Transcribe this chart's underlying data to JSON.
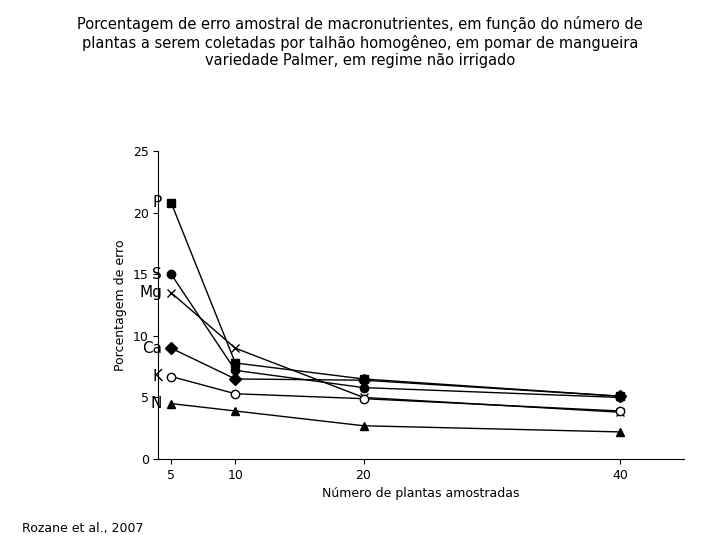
{
  "title": "Porcentagem de erro amostral de macronutrientes, em função do número de\nplantas a serem coletadas por talhão homogêneo, em pomar de mangueira\nvariedade Palmer, em regime não irrigado",
  "xlabel": "Número de plantas amostradas",
  "ylabel": "Porcentagem de erro",
  "x": [
    5,
    10,
    20,
    40
  ],
  "series_order": [
    "P",
    "S",
    "Mg",
    "Ca",
    "K",
    "N"
  ],
  "series": {
    "P": {
      "values": [
        20.8,
        7.8,
        6.5,
        5.1
      ],
      "marker": "s",
      "fillstyle": "full"
    },
    "S": {
      "values": [
        15.0,
        7.2,
        5.8,
        5.0
      ],
      "marker": "o",
      "fillstyle": "full"
    },
    "Mg": {
      "values": [
        13.5,
        9.0,
        5.0,
        3.8
      ],
      "marker": "x",
      "fillstyle": "full"
    },
    "Ca": {
      "values": [
        9.0,
        6.5,
        6.4,
        5.1
      ],
      "marker": "D",
      "fillstyle": "full"
    },
    "K": {
      "values": [
        6.7,
        5.3,
        4.9,
        3.9
      ],
      "marker": "o",
      "fillstyle": "none"
    },
    "N": {
      "values": [
        4.5,
        3.9,
        2.7,
        2.2
      ],
      "marker": "^",
      "fillstyle": "full"
    }
  },
  "ylim": [
    0,
    25
  ],
  "yticks": [
    0,
    5,
    10,
    15,
    20,
    25
  ],
  "xlim": [
    4,
    45
  ],
  "xticks": [
    5,
    10,
    20,
    40
  ],
  "footnote": "Rozane et al., 2007",
  "background_color": "#ffffff",
  "fontsize_title": 10.5,
  "fontsize_axis_label": 9,
  "fontsize_ticks": 9,
  "fontsize_series_label": 11,
  "fontsize_footnote": 9,
  "markersize": 6,
  "linewidth": 1.0
}
